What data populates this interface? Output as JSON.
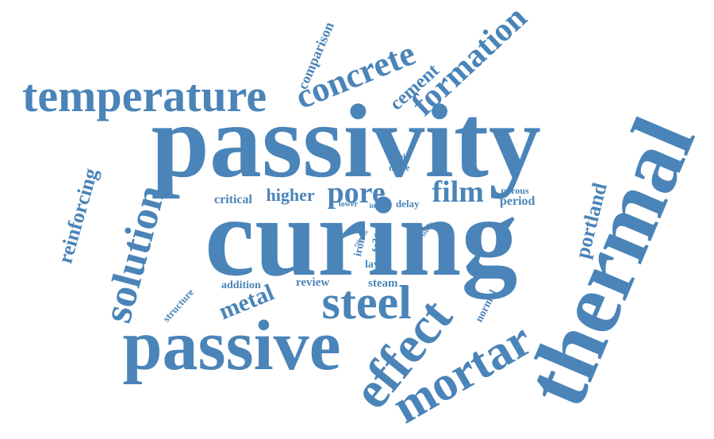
{
  "word_color": "#4a84b8",
  "words": [
    {
      "text": "curing"
    },
    {
      "text": "passivity"
    },
    {
      "text": "thermal"
    },
    {
      "text": "passive"
    },
    {
      "text": "steel"
    },
    {
      "text": "temperature"
    },
    {
      "text": "effect"
    },
    {
      "text": "mortar"
    },
    {
      "text": "solution"
    },
    {
      "text": "formation"
    },
    {
      "text": "concrete"
    },
    {
      "text": "film"
    },
    {
      "text": "pore"
    },
    {
      "text": "reinforcing"
    },
    {
      "text": "cement"
    },
    {
      "text": "metal"
    },
    {
      "text": "portland"
    },
    {
      "text": "higher"
    },
    {
      "text": "comparison"
    },
    {
      "text": "critical"
    },
    {
      "text": "period"
    },
    {
      "text": "normal"
    },
    {
      "text": "review"
    },
    {
      "text": "steam"
    },
    {
      "text": "addition"
    },
    {
      "text": "structure"
    },
    {
      "text": "porous"
    },
    {
      "text": "iron"
    },
    {
      "text": "fe3o"
    },
    {
      "text": "layer"
    },
    {
      "text": "delay"
    },
    {
      "text": "more"
    },
    {
      "text": "result"
    },
    {
      "text": "lower"
    },
    {
      "text": "inner"
    },
    {
      "text": "study"
    },
    {
      "text": "rate rise"
    },
    {
      "text": "ion"
    }
  ]
}
